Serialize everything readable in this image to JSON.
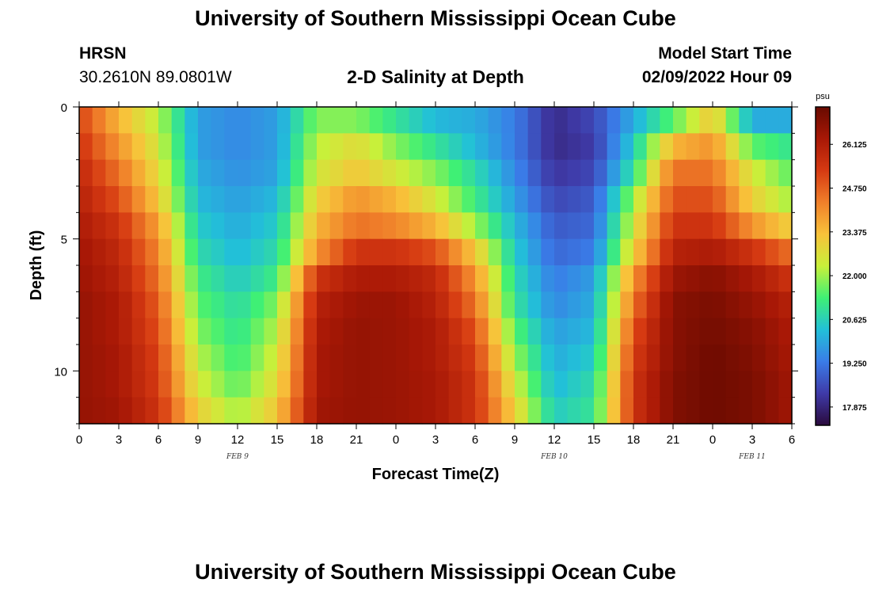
{
  "header": {
    "title": "University of Southern Mississippi Ocean Cube",
    "station": "HRSN",
    "coords": "30.2610N  89.0801W",
    "subtitle": "2-D Salinity at Depth",
    "model_start_label": "Model Start Time",
    "model_start_value": "02/09/2022 Hour 09"
  },
  "footer": {
    "title": "University of Southern Mississippi Ocean Cube"
  },
  "colors": {
    "scale": [
      "#2a0a3c",
      "#3f3aa8",
      "#3a7ce8",
      "#22c0d8",
      "#3ff075",
      "#c8f03a",
      "#f8c23a",
      "#f0802a",
      "#d63a12",
      "#a81806",
      "#680a00"
    ]
  },
  "chart_data": {
    "type": "heatmap",
    "title": "2-D Salinity at Depth",
    "xlabel": "Forecast Time(Z)",
    "ylabel": "Depth (ft)",
    "x_range_hours": [
      0,
      54
    ],
    "depth_range_ft": [
      0,
      12
    ],
    "x_tick_labels": [
      "0",
      "3",
      "6",
      "9",
      "12",
      "15",
      "18",
      "21",
      "0",
      "3",
      "6",
      "9",
      "12",
      "15",
      "18",
      "21",
      "0",
      "3",
      "6"
    ],
    "y_tick_labels": [
      "0",
      "5",
      "10"
    ],
    "y_tick_values": [
      0,
      5,
      10
    ],
    "date_labels": [
      {
        "label": "FEB 9",
        "hour": 12
      },
      {
        "label": "FEB 10",
        "hour": 36
      },
      {
        "label": "FEB 11",
        "hour": 51
      }
    ],
    "colorbar": {
      "unit": "psu",
      "min": 17.3,
      "max": 27.3,
      "labels": [
        "26.125",
        "24.750",
        "23.375",
        "22.000",
        "20.625",
        "19.250",
        "17.875"
      ],
      "label_values": [
        26.125,
        24.75,
        23.375,
        22.0,
        20.625,
        19.25,
        17.875
      ]
    },
    "depth_levels_ft": [
      0.5,
      1.5,
      2.5,
      3.5,
      4.5,
      5.5,
      6.5,
      7.5,
      8.5,
      9.5,
      10.5,
      11.5
    ],
    "time_hours": [
      0,
      3,
      6,
      9,
      12,
      15,
      18,
      21,
      24,
      27,
      30,
      33,
      36,
      39,
      42,
      45,
      48,
      51,
      54
    ],
    "salinity_psu": [
      [
        25.2,
        23.5,
        22.2,
        19.8,
        19.5,
        19.8,
        21.8,
        21.8,
        21.0,
        20.2,
        20.0,
        19.3,
        18.0,
        18.5,
        20.0,
        21.5,
        23.2,
        20.0,
        20.0
      ],
      [
        25.5,
        24.0,
        22.5,
        19.8,
        19.5,
        19.8,
        22.2,
        22.8,
        21.8,
        21.0,
        20.2,
        19.3,
        18.0,
        18.3,
        20.5,
        23.5,
        24.0,
        21.5,
        21.0
      ],
      [
        25.8,
        24.5,
        22.8,
        20.0,
        19.6,
        19.9,
        22.5,
        23.2,
        22.5,
        21.8,
        20.8,
        19.5,
        18.2,
        18.5,
        21.0,
        24.5,
        24.5,
        22.5,
        21.5
      ],
      [
        26.0,
        25.0,
        23.2,
        20.2,
        19.8,
        20.2,
        23.0,
        24.0,
        23.5,
        22.5,
        21.2,
        19.8,
        18.5,
        18.8,
        22.0,
        25.0,
        25.0,
        23.0,
        22.0
      ],
      [
        26.2,
        25.5,
        23.8,
        20.5,
        20.0,
        20.5,
        23.5,
        24.5,
        24.2,
        23.5,
        22.0,
        20.2,
        18.8,
        19.0,
        22.5,
        25.5,
        25.5,
        24.0,
        23.0
      ],
      [
        26.4,
        25.8,
        24.2,
        20.8,
        20.2,
        20.8,
        24.0,
        25.5,
        25.5,
        25.0,
        23.2,
        20.5,
        19.0,
        19.3,
        23.0,
        26.0,
        26.2,
        25.5,
        24.5
      ],
      [
        26.5,
        26.0,
        24.5,
        21.2,
        20.5,
        21.2,
        25.5,
        26.2,
        26.2,
        25.8,
        24.0,
        20.8,
        19.3,
        19.8,
        24.0,
        26.5,
        26.8,
        26.3,
        25.5
      ],
      [
        26.6,
        26.2,
        24.8,
        21.5,
        20.8,
        21.8,
        26.0,
        26.5,
        26.5,
        26.0,
        24.5,
        21.0,
        19.5,
        20.0,
        24.5,
        26.8,
        27.0,
        26.6,
        26.0
      ],
      [
        26.6,
        26.2,
        25.0,
        21.8,
        21.0,
        22.2,
        26.2,
        26.6,
        26.5,
        26.2,
        25.0,
        21.5,
        19.8,
        20.2,
        25.0,
        26.8,
        27.1,
        26.8,
        26.2
      ],
      [
        26.6,
        26.3,
        25.2,
        22.2,
        21.2,
        22.5,
        26.3,
        26.6,
        26.5,
        26.2,
        25.3,
        22.0,
        20.0,
        20.5,
        25.3,
        26.8,
        27.2,
        26.9,
        26.3
      ],
      [
        26.6,
        26.3,
        25.3,
        22.5,
        21.5,
        22.8,
        26.3,
        26.6,
        26.5,
        26.3,
        25.5,
        22.5,
        20.2,
        20.8,
        25.5,
        26.9,
        27.2,
        27.0,
        26.4
      ],
      [
        26.6,
        26.4,
        25.5,
        23.0,
        22.0,
        23.2,
        26.4,
        26.6,
        26.5,
        26.3,
        25.5,
        23.0,
        20.5,
        21.0,
        25.5,
        26.9,
        27.2,
        27.0,
        26.4
      ]
    ]
  }
}
